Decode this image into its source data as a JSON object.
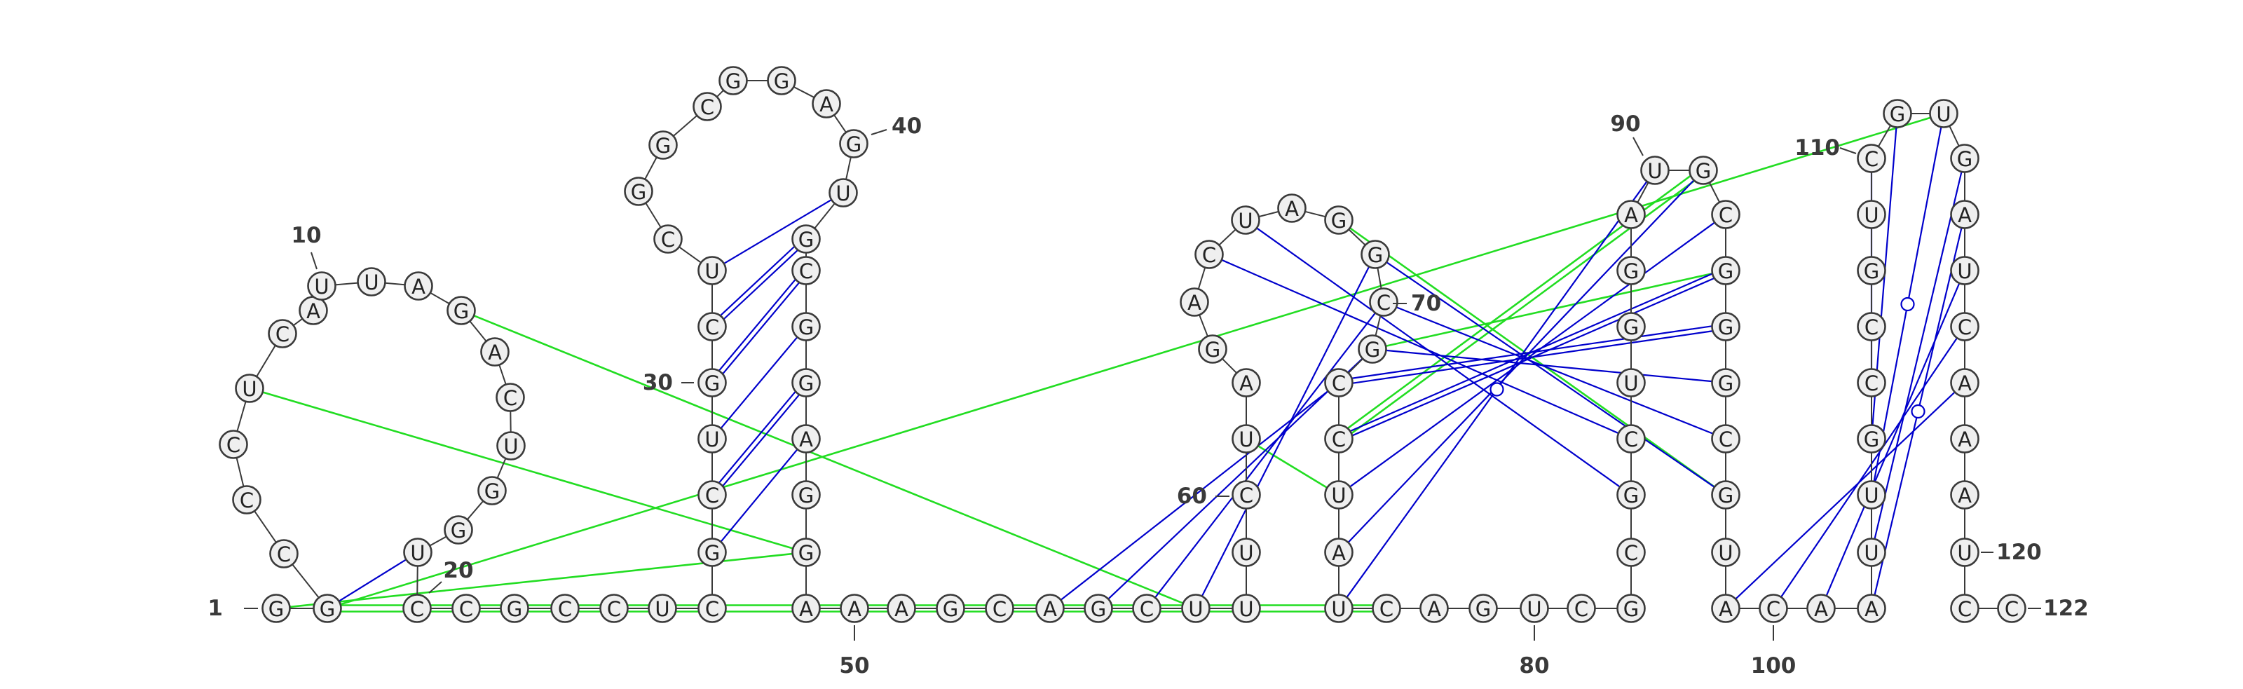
{
  "sequence": "GGCCCUCAUUAGACUGGUCCGCCUCGCUGCUCGGCGGAGUGCGGAGGAAAGCAGCUUUCUAGACUAGGCGCCUAUCAGUCGCGCUGGAUGCGGGCGUACAAUUGCCGUCGUGAUCAAAUCC",
  "position_labels": [
    "1",
    "10",
    "20",
    "30",
    "40",
    "50",
    "60",
    "70",
    "80",
    "90",
    "100",
    "110",
    "120",
    "122"
  ],
  "colors": {
    "circle_fill": "#efefef",
    "circle_stroke": "#3a3a3a",
    "canonical_pair": "#0000cc",
    "wobble_pair": "#0000cc",
    "pseudoknot": "#22dd22",
    "label": "#3a3a3a"
  },
  "base_pairs": [
    [
      2,
      18
    ],
    [
      26,
      45
    ],
    [
      27,
      44
    ],
    [
      28,
      43
    ],
    [
      29,
      42
    ],
    [
      30,
      41
    ],
    [
      31,
      40
    ],
    [
      53,
      71
    ],
    [
      54,
      70
    ],
    [
      55,
      69
    ],
    [
      56,
      68
    ],
    [
      64,
      84
    ],
    [
      65,
      83
    ],
    [
      68,
      96
    ],
    [
      69,
      95
    ],
    [
      70,
      94
    ],
    [
      71,
      93
    ],
    [
      72,
      92
    ],
    [
      73,
      91
    ],
    [
      74,
      90
    ],
    [
      75,
      89
    ],
    [
      98,
      116
    ],
    [
      99,
      115
    ],
    [
      100,
      114
    ],
    [
      101,
      113
    ],
    [
      102,
      112
    ],
    [
      103,
      111
    ],
    [
      104,
      110
    ],
    [
      105,
      109
    ]
  ],
  "wobble_pairs": [
    [
      75,
      89
    ],
    [
      101,
      113
    ],
    [
      103,
      111
    ],
    [
      105,
      109
    ]
  ],
  "pseudoknot_pairs": [
    [
      1,
      47
    ],
    [
      2,
      76
    ],
    [
      2,
      111
    ],
    [
      6,
      47
    ],
    [
      12,
      56
    ],
    [
      60,
      73
    ],
    [
      67,
      96
    ],
    [
      70,
      92
    ],
    [
      72,
      90
    ]
  ]
}
